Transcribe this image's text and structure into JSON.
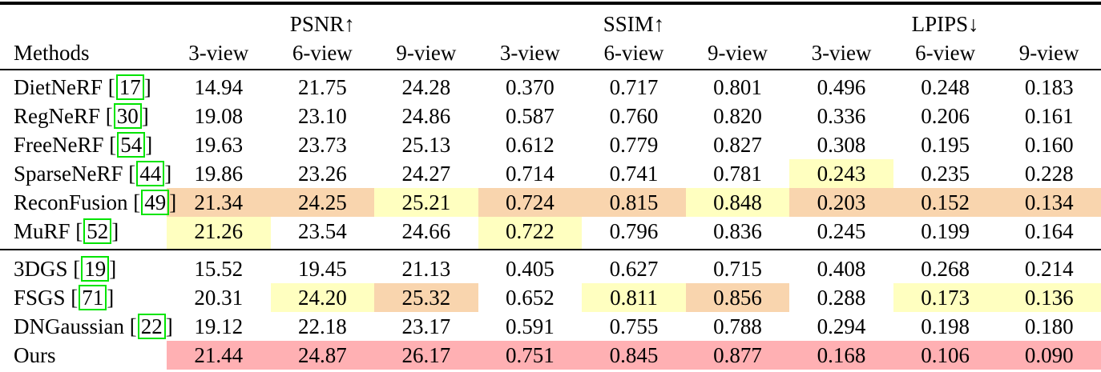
{
  "table": {
    "methods_header": "Methods",
    "metric_groups": [
      {
        "label": "PSNR↑",
        "views": [
          "3-view",
          "6-view",
          "9-view"
        ]
      },
      {
        "label": "SSIM↑",
        "views": [
          "3-view",
          "6-view",
          "9-view"
        ]
      },
      {
        "label": "LPIPS↓",
        "views": [
          "3-view",
          "6-view",
          "9-view"
        ]
      }
    ],
    "highlight_colors": {
      "best": "#ffb0b3",
      "second": "#f9d5ae",
      "third": "#ffffc0"
    },
    "citation_box_color": "#00e400",
    "groups": [
      {
        "name": "nerf-methods",
        "rows": [
          {
            "method": "DietNeRF",
            "cite": "17",
            "values": [
              "14.94",
              "21.75",
              "24.28",
              "0.370",
              "0.717",
              "0.801",
              "0.496",
              "0.248",
              "0.183"
            ],
            "highlights": [
              null,
              null,
              null,
              null,
              null,
              null,
              null,
              null,
              null
            ]
          },
          {
            "method": "RegNeRF",
            "cite": "30",
            "values": [
              "19.08",
              "23.10",
              "24.86",
              "0.587",
              "0.760",
              "0.820",
              "0.336",
              "0.206",
              "0.161"
            ],
            "highlights": [
              null,
              null,
              null,
              null,
              null,
              null,
              null,
              null,
              null
            ]
          },
          {
            "method": "FreeNeRF",
            "cite": "54",
            "values": [
              "19.63",
              "23.73",
              "25.13",
              "0.612",
              "0.779",
              "0.827",
              "0.308",
              "0.195",
              "0.160"
            ],
            "highlights": [
              null,
              null,
              null,
              null,
              null,
              null,
              null,
              null,
              null
            ]
          },
          {
            "method": "SparseNeRF",
            "cite": "44",
            "values": [
              "19.86",
              "23.26",
              "24.27",
              "0.714",
              "0.741",
              "0.781",
              "0.243",
              "0.235",
              "0.228"
            ],
            "highlights": [
              null,
              null,
              null,
              null,
              null,
              null,
              "third",
              null,
              null
            ]
          },
          {
            "method": "ReconFusion",
            "cite": "49",
            "values": [
              "21.34",
              "24.25",
              "25.21",
              "0.724",
              "0.815",
              "0.848",
              "0.203",
              "0.152",
              "0.134"
            ],
            "highlights": [
              "second",
              "second",
              "third",
              "second",
              "second",
              "third",
              "second",
              "second",
              "second"
            ]
          },
          {
            "method": "MuRF",
            "cite": "52",
            "values": [
              "21.26",
              "23.54",
              "24.66",
              "0.722",
              "0.796",
              "0.836",
              "0.245",
              "0.199",
              "0.164"
            ],
            "highlights": [
              "third",
              null,
              null,
              "third",
              null,
              null,
              null,
              null,
              null
            ]
          }
        ]
      },
      {
        "name": "gaussian-methods",
        "rows": [
          {
            "method": "3DGS",
            "cite": "19",
            "values": [
              "15.52",
              "19.45",
              "21.13",
              "0.405",
              "0.627",
              "0.715",
              "0.408",
              "0.268",
              "0.214"
            ],
            "highlights": [
              null,
              null,
              null,
              null,
              null,
              null,
              null,
              null,
              null
            ]
          },
          {
            "method": "FSGS",
            "cite": "71",
            "values": [
              "20.31",
              "24.20",
              "25.32",
              "0.652",
              "0.811",
              "0.856",
              "0.288",
              "0.173",
              "0.136"
            ],
            "highlights": [
              null,
              "third",
              "second",
              null,
              "third",
              "second",
              null,
              "third",
              "third"
            ]
          },
          {
            "method": "DNGaussian",
            "cite": "22",
            "values": [
              "19.12",
              "22.18",
              "23.17",
              "0.591",
              "0.755",
              "0.788",
              "0.294",
              "0.198",
              "0.180"
            ],
            "highlights": [
              null,
              null,
              null,
              null,
              null,
              null,
              null,
              null,
              null
            ]
          },
          {
            "method": "Ours",
            "cite": null,
            "values": [
              "21.44",
              "24.87",
              "26.17",
              "0.751",
              "0.845",
              "0.877",
              "0.168",
              "0.106",
              "0.090"
            ],
            "highlights": [
              "best",
              "best",
              "best",
              "best",
              "best",
              "best",
              "best",
              "best",
              "best"
            ]
          }
        ]
      }
    ]
  }
}
